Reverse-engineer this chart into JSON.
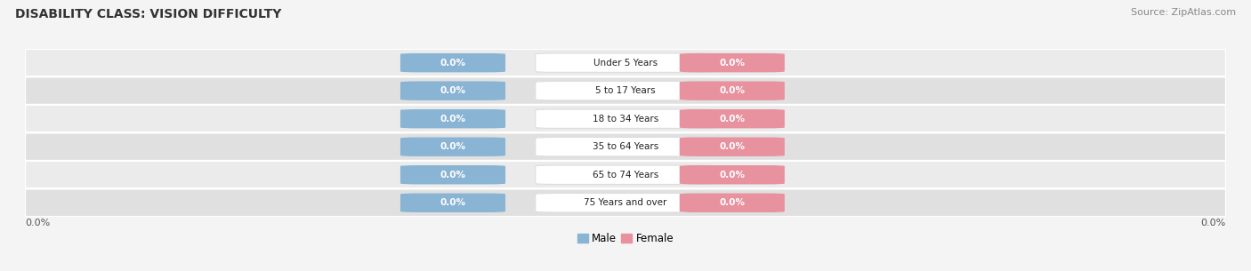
{
  "title": "DISABILITY CLASS: VISION DIFFICULTY",
  "source": "Source: ZipAtlas.com",
  "categories": [
    "Under 5 Years",
    "5 to 17 Years",
    "18 to 34 Years",
    "35 to 64 Years",
    "65 to 74 Years",
    "75 Years and over"
  ],
  "male_values": [
    0.0,
    0.0,
    0.0,
    0.0,
    0.0,
    0.0
  ],
  "female_values": [
    0.0,
    0.0,
    0.0,
    0.0,
    0.0,
    0.0
  ],
  "male_color": "#8ab4d4",
  "female_color": "#e8919f",
  "background_color": "#f4f4f4",
  "row_color_odd": "#ebebeb",
  "row_color_even": "#e0e0e0",
  "title_fontsize": 10,
  "source_fontsize": 8,
  "label_fontsize": 8,
  "tick_fontsize": 8,
  "xlim": [
    -1.0,
    1.0
  ]
}
